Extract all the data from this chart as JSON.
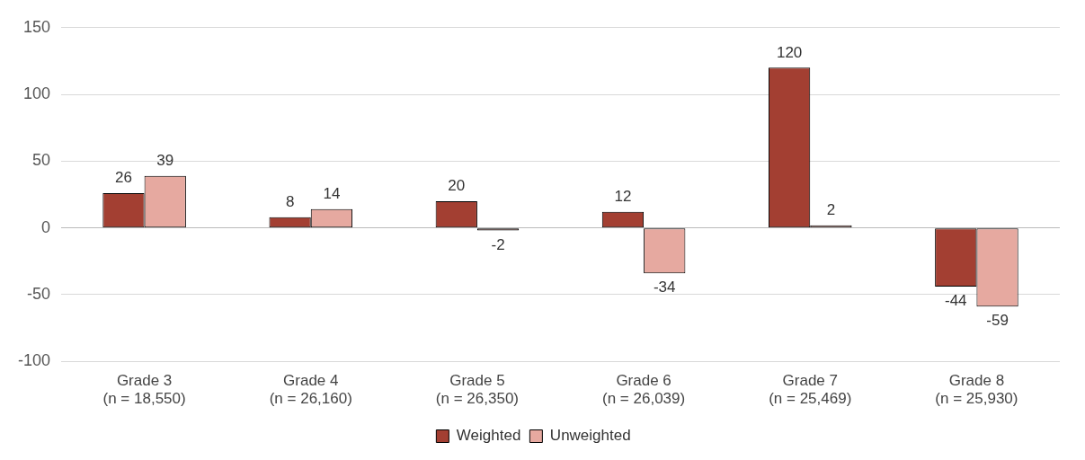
{
  "chart_data": {
    "type": "bar",
    "categories": [
      "Grade 3\n(n = 18,550)",
      "Grade 4\n(n = 26,160)",
      "Grade 5\n(n = 26,350)",
      "Grade 6\n(n = 26,039)",
      "Grade 7\n(n = 25,469)",
      "Grade 8\n(n = 25,930)"
    ],
    "series": [
      {
        "name": "Weighted",
        "color": "#a33f32",
        "values": [
          26,
          8,
          20,
          12,
          120,
          -44
        ]
      },
      {
        "name": "Unweighted",
        "color": "#e6a9a0",
        "values": [
          39,
          14,
          -2,
          -34,
          2,
          -59
        ]
      }
    ],
    "ylim": [
      -100,
      150
    ],
    "yticks": [
      -100,
      -50,
      0,
      50,
      100,
      150
    ],
    "grid": "y",
    "legend": "bottom",
    "data_labels": true
  }
}
